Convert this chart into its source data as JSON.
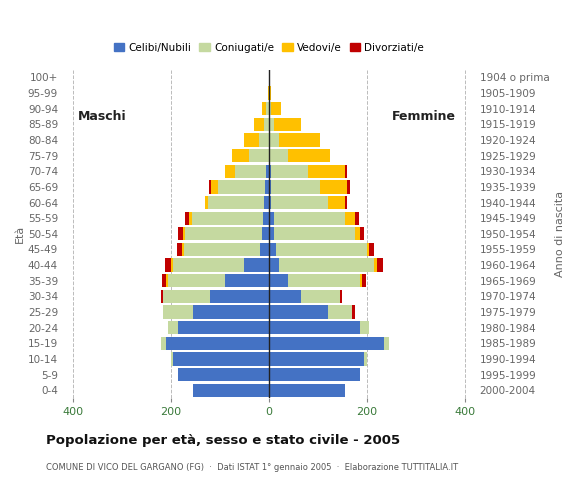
{
  "age_groups": [
    "0-4",
    "5-9",
    "10-14",
    "15-19",
    "20-24",
    "25-29",
    "30-34",
    "35-39",
    "40-44",
    "45-49",
    "50-54",
    "55-59",
    "60-64",
    "65-69",
    "70-74",
    "75-79",
    "80-84",
    "85-89",
    "90-94",
    "95-99",
    "100+"
  ],
  "birth_years": [
    "2000-2004",
    "1995-1999",
    "1990-1994",
    "1985-1989",
    "1980-1984",
    "1975-1979",
    "1970-1974",
    "1965-1969",
    "1960-1964",
    "1955-1959",
    "1950-1954",
    "1945-1949",
    "1940-1944",
    "1935-1939",
    "1930-1934",
    "1925-1929",
    "1920-1924",
    "1915-1919",
    "1910-1914",
    "1905-1909",
    "1904 o prima"
  ],
  "males": {
    "celibi": [
      155,
      185,
      195,
      210,
      185,
      155,
      120,
      90,
      50,
      18,
      15,
      12,
      10,
      8,
      5,
      0,
      0,
      0,
      0,
      0,
      0
    ],
    "coniugati": [
      0,
      0,
      5,
      10,
      20,
      60,
      95,
      115,
      145,
      155,
      155,
      145,
      115,
      95,
      65,
      40,
      20,
      10,
      5,
      0,
      0
    ],
    "vedovi": [
      0,
      0,
      0,
      0,
      0,
      0,
      0,
      5,
      5,
      5,
      5,
      5,
      5,
      15,
      20,
      35,
      30,
      20,
      8,
      2,
      0
    ],
    "divorziati": [
      0,
      0,
      0,
      0,
      0,
      0,
      5,
      8,
      12,
      10,
      10,
      8,
      0,
      5,
      0,
      0,
      0,
      0,
      0,
      0,
      0
    ]
  },
  "females": {
    "nubili": [
      155,
      185,
      195,
      235,
      185,
      120,
      65,
      40,
      20,
      15,
      10,
      10,
      5,
      5,
      5,
      0,
      0,
      0,
      0,
      0,
      0
    ],
    "coniugate": [
      0,
      0,
      5,
      10,
      20,
      50,
      80,
      145,
      195,
      185,
      165,
      145,
      115,
      100,
      75,
      40,
      20,
      10,
      5,
      0,
      0
    ],
    "vedove": [
      0,
      0,
      0,
      0,
      0,
      0,
      0,
      5,
      5,
      5,
      10,
      20,
      35,
      55,
      75,
      85,
      85,
      55,
      20,
      5,
      0
    ],
    "divorziate": [
      0,
      0,
      0,
      0,
      0,
      5,
      5,
      8,
      12,
      10,
      10,
      8,
      5,
      5,
      5,
      0,
      0,
      0,
      0,
      0,
      0
    ]
  },
  "colors": {
    "celibi": "#4472c4",
    "coniugati": "#c5d9a0",
    "vedovi": "#ffc000",
    "divorziati": "#c00000"
  },
  "xlim": 420,
  "title": "Popolazione per età, sesso e stato civile - 2005",
  "subtitle": "COMUNE DI VICO DEL GARGANO (FG)  ·  Dati ISTAT 1° gennaio 2005  ·  Elaborazione TUTTITALIA.IT",
  "ylabel_left": "Età",
  "ylabel_right": "Anno di nascita",
  "label_maschi": "Maschi",
  "label_femmine": "Femmine",
  "legend_labels": [
    "Celibi/Nubili",
    "Coniugati/e",
    "Vedovi/e",
    "Divorziati/e"
  ],
  "bg_color": "#ffffff",
  "bar_height": 0.85,
  "grid_color": "#bbbbbb"
}
